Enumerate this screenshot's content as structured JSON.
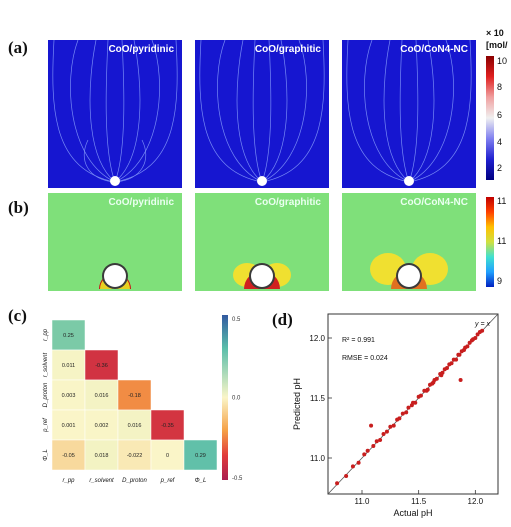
{
  "panel_labels": {
    "a": "(a)",
    "b": "(b)",
    "c": "(c)",
    "d": "(d)"
  },
  "panels": {
    "a": {
      "titles": [
        "CoO/pyridinic",
        "CoO/graphitic",
        "CoO/CoN4-NC"
      ]
    },
    "b": {
      "titles": [
        "CoO/pyridinic",
        "CoO/graphitic",
        "CoO/CoN4-NC"
      ]
    }
  },
  "colorbar_a": {
    "header_line1": "× 10",
    "header_line2": "[mol/",
    "ticks": [
      "10",
      "8",
      "6",
      "4",
      "2"
    ]
  },
  "colorbar_b": {
    "ticks": [
      "11",
      "11",
      "9"
    ]
  },
  "colors": {
    "field_blue": "#1a1ad6",
    "hot_red": "#c8141e",
    "panel_b_green": "#7fe07a",
    "scatter_red": "#c81e1e"
  },
  "chart_data": [
    {
      "type": "heatmap",
      "panel": "c",
      "row_labels": [
        "r_pp",
        "r_solvent",
        "D_proton",
        "p_ref",
        "Φ_L"
      ],
      "col_labels": [
        "r_pp",
        "r_solvent",
        "D_proton",
        "p_ref",
        "Φ_L"
      ],
      "lower_triangle_values": [
        [
          "0.25"
        ],
        [
          "0.011",
          "-0.36"
        ],
        [
          "0.003",
          "0.016",
          "-0.18"
        ],
        [
          "0.001",
          "0.002",
          "0.016",
          "-0.35"
        ],
        [
          "-0.05",
          "0.018",
          "-0.022",
          "0",
          "0.29"
        ]
      ],
      "colorbar": {
        "range": [
          -0.5,
          0.5
        ],
        "tick_labels": [
          "0.5",
          "0.0",
          "-0.5"
        ]
      }
    },
    {
      "type": "scatter",
      "panel": "d",
      "xlabel": "Actual pH",
      "ylabel": "Predicted pH",
      "xlim": [
        10.7,
        12.2
      ],
      "ylim": [
        10.7,
        12.2
      ],
      "x_ticks": [
        "11.0",
        "11.5",
        "12.0"
      ],
      "y_ticks": [
        "11.0",
        "11.5",
        "12.0"
      ],
      "annotations": {
        "r2": "R² = 0.991",
        "rmse": "RMSE = 0.024",
        "identity": "y = x"
      },
      "points": [
        [
          10.78,
          10.79
        ],
        [
          10.86,
          10.85
        ],
        [
          10.92,
          10.93
        ],
        [
          10.97,
          10.96
        ],
        [
          11.02,
          11.03
        ],
        [
          11.05,
          11.06
        ],
        [
          11.08,
          11.27
        ],
        [
          11.1,
          11.1
        ],
        [
          11.13,
          11.14
        ],
        [
          11.16,
          11.15
        ],
        [
          11.19,
          11.2
        ],
        [
          11.22,
          11.22
        ],
        [
          11.25,
          11.26
        ],
        [
          11.28,
          11.27
        ],
        [
          11.31,
          11.32
        ],
        [
          11.33,
          11.33
        ],
        [
          11.36,
          11.37
        ],
        [
          11.39,
          11.38
        ],
        [
          11.41,
          11.42
        ],
        [
          11.44,
          11.44
        ],
        [
          11.47,
          11.46
        ],
        [
          11.5,
          11.51
        ],
        [
          11.52,
          11.52
        ],
        [
          11.55,
          11.56
        ],
        [
          11.57,
          11.56
        ],
        [
          11.6,
          11.61
        ],
        [
          11.62,
          11.62
        ],
        [
          11.64,
          11.65
        ],
        [
          11.66,
          11.66
        ],
        [
          11.69,
          11.7
        ],
        [
          11.71,
          11.71
        ],
        [
          11.73,
          11.74
        ],
        [
          11.75,
          11.75
        ],
        [
          11.77,
          11.78
        ],
        [
          11.79,
          11.79
        ],
        [
          11.81,
          11.82
        ],
        [
          11.83,
          11.82
        ],
        [
          11.85,
          11.86
        ],
        [
          11.86,
          11.86
        ],
        [
          11.88,
          11.89
        ],
        [
          11.9,
          11.9
        ],
        [
          11.91,
          11.92
        ],
        [
          11.93,
          11.93
        ],
        [
          11.95,
          11.96
        ],
        [
          11.97,
          11.98
        ],
        [
          11.98,
          11.99
        ],
        [
          12.0,
          12.0
        ],
        [
          12.02,
          12.03
        ],
        [
          12.04,
          12.05
        ],
        [
          12.06,
          12.06
        ],
        [
          11.87,
          11.65
        ],
        [
          11.58,
          11.57
        ],
        [
          11.63,
          11.63
        ],
        [
          11.45,
          11.46
        ],
        [
          11.7,
          11.69
        ]
      ]
    }
  ]
}
